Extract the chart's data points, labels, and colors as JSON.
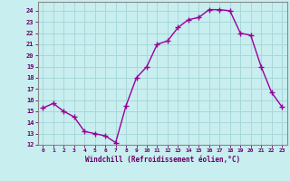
{
  "x": [
    0,
    1,
    2,
    3,
    4,
    5,
    6,
    7,
    8,
    9,
    10,
    11,
    12,
    13,
    14,
    15,
    16,
    17,
    18,
    19,
    20,
    21,
    22,
    23
  ],
  "y": [
    15.3,
    15.7,
    15.0,
    14.5,
    13.2,
    13.0,
    12.8,
    12.2,
    15.5,
    18.0,
    19.0,
    21.0,
    21.3,
    22.5,
    23.2,
    23.4,
    24.1,
    24.1,
    24.0,
    22.0,
    21.8,
    19.0,
    16.7,
    15.4
  ],
  "line_color": "#990099",
  "marker": "+",
  "marker_size": 4,
  "bg_color": "#c8eef0",
  "grid_color": "#a8d8da",
  "xlabel": "Windchill (Refroidissement éolien,°C)",
  "xlim": [
    -0.5,
    23.5
  ],
  "ylim": [
    12,
    24.8
  ],
  "yticks": [
    12,
    13,
    14,
    15,
    16,
    17,
    18,
    19,
    20,
    21,
    22,
    23,
    24
  ],
  "xticks": [
    0,
    1,
    2,
    3,
    4,
    5,
    6,
    7,
    8,
    9,
    10,
    11,
    12,
    13,
    14,
    15,
    16,
    17,
    18,
    19,
    20,
    21,
    22,
    23
  ],
  "tick_color": "#660066",
  "label_color": "#660066",
  "axis_color": "#888888",
  "linewidth": 1.0,
  "marker_linewidth": 1.0
}
